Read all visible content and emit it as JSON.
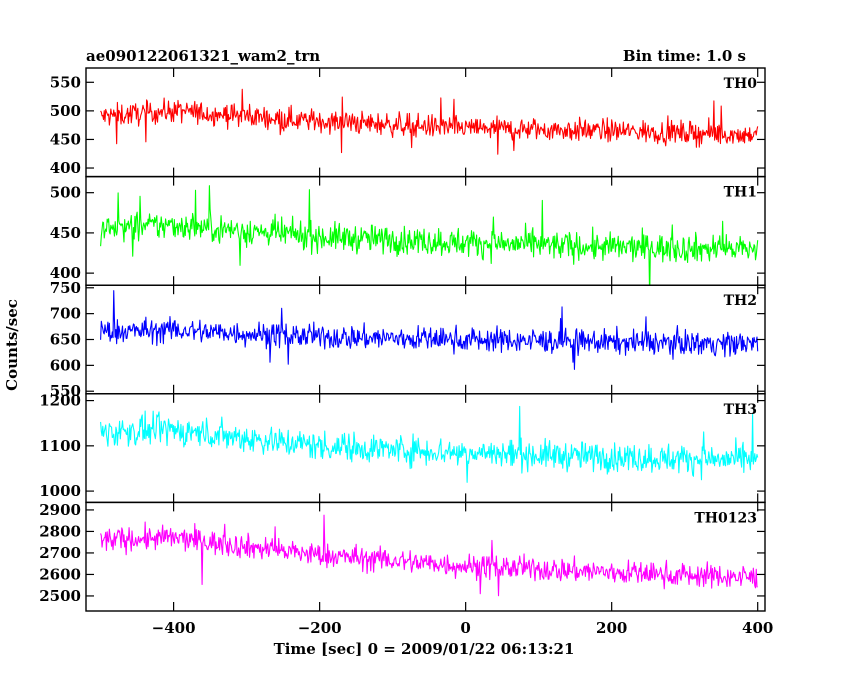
{
  "header": {
    "title": "ae090122061321_wam2_trn",
    "bin_time": "Bin time: 1.0 s"
  },
  "chart_data": {
    "type": "line",
    "xlabel": "Time [sec] 0 = 2009/01/22 06:13:21",
    "ylabel": "Counts/sec",
    "xlim": [
      -520,
      410
    ],
    "xticks": [
      -400,
      -200,
      0,
      200,
      400
    ],
    "bin_time_s": 1.0,
    "x_range": [
      -500,
      400
    ],
    "panels": [
      {
        "name": "TH0",
        "color": "#ff0000",
        "ylim": [
          385,
          575
        ],
        "yticks": [
          400,
          450,
          500,
          550
        ],
        "trend": [
          [
            -500,
            490
          ],
          [
            -400,
            500
          ],
          [
            -200,
            482
          ],
          [
            0,
            470
          ],
          [
            200,
            465
          ],
          [
            400,
            458
          ]
        ],
        "noise_amplitude": 34
      },
      {
        "name": "TH1",
        "color": "#00ff00",
        "ylim": [
          385,
          520
        ],
        "yticks": [
          400,
          450,
          500
        ],
        "trend": [
          [
            -500,
            455
          ],
          [
            -400,
            460
          ],
          [
            -200,
            445
          ],
          [
            0,
            438
          ],
          [
            200,
            432
          ],
          [
            400,
            430
          ]
        ],
        "noise_amplitude": 30
      },
      {
        "name": "TH2",
        "color": "#0000ff",
        "ylim": [
          545,
          755
        ],
        "yticks": [
          550,
          600,
          650,
          700,
          750
        ],
        "trend": [
          [
            -500,
            665
          ],
          [
            -400,
            668
          ],
          [
            -200,
            655
          ],
          [
            0,
            650
          ],
          [
            200,
            645
          ],
          [
            400,
            642
          ]
        ],
        "noise_amplitude": 40
      },
      {
        "name": "TH3",
        "color": "#00ffff",
        "ylim": [
          975,
          1215
        ],
        "yticks": [
          1000,
          1100,
          1200
        ],
        "trend": [
          [
            -500,
            1130
          ],
          [
            -400,
            1135
          ],
          [
            -200,
            1100
          ],
          [
            0,
            1085
          ],
          [
            200,
            1075
          ],
          [
            400,
            1068
          ]
        ],
        "noise_amplitude": 55
      },
      {
        "name": "TH0123",
        "color": "#ff00ff",
        "ylim": [
          2430,
          2935
        ],
        "yticks": [
          2500,
          2600,
          2700,
          2800,
          2900
        ],
        "trend": [
          [
            -500,
            2760
          ],
          [
            -400,
            2770
          ],
          [
            -200,
            2690
          ],
          [
            0,
            2640
          ],
          [
            200,
            2610
          ],
          [
            400,
            2585
          ]
        ],
        "noise_amplitude": 95
      }
    ]
  }
}
